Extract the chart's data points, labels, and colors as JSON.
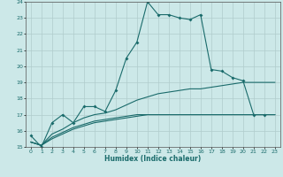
{
  "title": "",
  "xlabel": "Humidex (Indice chaleur)",
  "ylabel": "",
  "bg_color": "#cce8e8",
  "grid_color": "#b0cccc",
  "line_color": "#1a6b6b",
  "xlim": [
    -0.5,
    23.5
  ],
  "ylim": [
    15,
    24
  ],
  "xticks": [
    0,
    1,
    2,
    3,
    4,
    5,
    6,
    7,
    8,
    9,
    10,
    11,
    12,
    13,
    14,
    15,
    16,
    17,
    18,
    19,
    20,
    21,
    22,
    23
  ],
  "yticks": [
    15,
    16,
    17,
    18,
    19,
    20,
    21,
    22,
    23,
    24
  ],
  "line1_x": [
    0,
    1,
    2,
    3,
    4,
    5,
    6,
    7,
    8,
    9,
    10,
    11,
    12,
    13,
    14,
    15,
    16,
    17,
    18,
    19,
    20,
    21,
    22
  ],
  "line1_y": [
    15.7,
    15.0,
    16.5,
    17.0,
    16.5,
    17.5,
    17.5,
    17.2,
    18.5,
    20.5,
    21.5,
    24.0,
    23.2,
    23.2,
    23.0,
    22.9,
    23.2,
    19.8,
    19.7,
    19.3,
    19.1,
    17.0,
    17.0
  ],
  "line2_x": [
    0,
    1,
    2,
    3,
    4,
    5,
    6,
    7,
    8,
    9,
    10,
    11,
    12,
    13,
    14,
    15,
    16,
    17,
    18,
    19,
    20,
    21,
    22,
    23
  ],
  "line2_y": [
    15.3,
    15.1,
    15.6,
    15.9,
    16.2,
    16.4,
    16.6,
    16.7,
    16.8,
    16.9,
    17.0,
    17.0,
    17.0,
    17.0,
    17.0,
    17.0,
    17.0,
    17.0,
    17.0,
    17.0,
    17.0,
    17.0,
    17.0,
    17.0
  ],
  "line3_x": [
    0,
    1,
    2,
    3,
    4,
    5,
    6,
    7,
    8,
    9,
    10,
    11,
    12,
    13,
    14,
    15,
    16,
    17,
    18,
    19,
    20,
    21,
    22,
    23
  ],
  "line3_y": [
    15.3,
    15.1,
    15.8,
    16.1,
    16.5,
    16.8,
    17.0,
    17.1,
    17.3,
    17.6,
    17.9,
    18.1,
    18.3,
    18.4,
    18.5,
    18.6,
    18.6,
    18.7,
    18.8,
    18.9,
    19.0,
    19.0,
    19.0,
    19.0
  ],
  "line4_x": [
    0,
    1,
    2,
    3,
    4,
    5,
    6,
    7,
    8,
    9,
    10,
    11,
    12,
    13,
    14,
    15,
    16,
    17,
    18,
    19,
    20,
    21,
    22,
    23
  ],
  "line4_y": [
    15.3,
    15.1,
    15.5,
    15.8,
    16.1,
    16.3,
    16.5,
    16.6,
    16.7,
    16.8,
    16.9,
    17.0,
    17.0,
    17.0,
    17.0,
    17.0,
    17.0,
    17.0,
    17.0,
    17.0,
    17.0,
    17.0,
    17.0,
    17.0
  ]
}
